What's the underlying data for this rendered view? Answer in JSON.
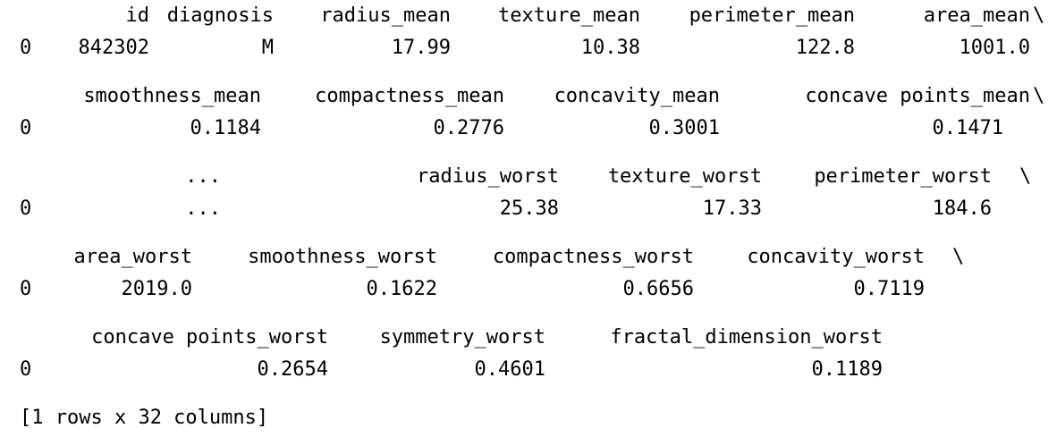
{
  "continuation_marker": "\\",
  "row_index": "0",
  "blocks": [
    {
      "headers": [
        "id",
        "diagnosis",
        "radius_mean",
        "texture_mean",
        "perimeter_mean",
        "area_mean"
      ],
      "values": [
        "842302",
        "M",
        "17.99",
        "10.38",
        "122.8",
        "1001.0"
      ]
    },
    {
      "headers": [
        "smoothness_mean",
        "compactness_mean",
        "concavity_mean",
        "concave points_mean"
      ],
      "values": [
        "0.1184",
        "0.2776",
        "0.3001",
        "0.1471"
      ]
    },
    {
      "headers": [
        "...",
        "radius_worst",
        "texture_worst",
        "perimeter_worst"
      ],
      "values": [
        "...",
        "25.38",
        "17.33",
        "184.6"
      ]
    },
    {
      "headers": [
        "area_worst",
        "smoothness_worst",
        "compactness_worst",
        "concavity_worst"
      ],
      "values": [
        "2019.0",
        "0.1622",
        "0.6656",
        "0.7119"
      ]
    },
    {
      "headers": [
        "concave points_worst",
        "symmetry_worst",
        "fractal_dimension_worst"
      ],
      "values": [
        "0.2654",
        "0.4601",
        "0.1189"
      ]
    }
  ],
  "summary": "[1 rows x 32 columns]"
}
